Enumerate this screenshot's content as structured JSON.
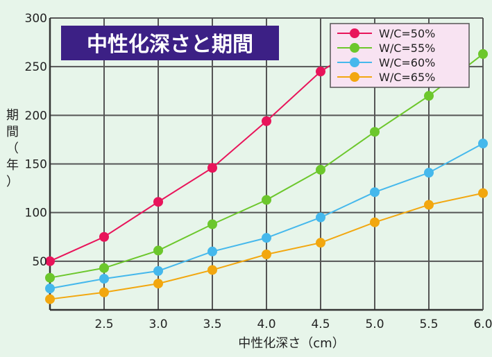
{
  "chart_data": {
    "type": "line",
    "title": "中性化深さと期間",
    "xlabel": "中性化深さ（cm）",
    "ylabel": "期間（年）",
    "xlim": [
      2.0,
      6.0
    ],
    "ylim": [
      0,
      300
    ],
    "x_ticks": [
      2.5,
      3.0,
      3.5,
      4.0,
      4.5,
      5.0,
      5.5,
      6.0
    ],
    "x_tick_labels": [
      "2.5",
      "3.0",
      "3.5",
      "4.0",
      "4.5",
      "5.0",
      "5.5",
      "6.0"
    ],
    "y_ticks": [
      50,
      100,
      150,
      200,
      250,
      300
    ],
    "y_tick_labels": [
      "50",
      "100",
      "150",
      "200",
      "250",
      "300"
    ],
    "grid": true,
    "legend_position": "top-right",
    "x": [
      2.0,
      2.5,
      3.0,
      3.5,
      4.0,
      4.5,
      5.0,
      5.5,
      6.0
    ],
    "series": [
      {
        "name": "W/C=50%",
        "color": "#e8145a",
        "values": [
          50,
          75,
          111,
          146,
          194,
          245,
          280,
          null,
          null
        ]
      },
      {
        "name": "W/C=55%",
        "color": "#6cc72c",
        "values": [
          33,
          43,
          61,
          88,
          113,
          144,
          183,
          220,
          263
        ]
      },
      {
        "name": "W/C=60%",
        "color": "#45b8ec",
        "values": [
          22,
          32,
          40,
          60,
          74,
          95,
          121,
          141,
          171
        ]
      },
      {
        "name": "W/C=65%",
        "color": "#f2a70f",
        "values": [
          11,
          18,
          27,
          41,
          57,
          69,
          90,
          108,
          120
        ]
      }
    ]
  },
  "colors": {
    "background": "#e7f5ea",
    "grid": "#555555",
    "title_bg": "#3c2085",
    "legend_bg": "#f8e3f2",
    "legend_border": "#555555"
  }
}
